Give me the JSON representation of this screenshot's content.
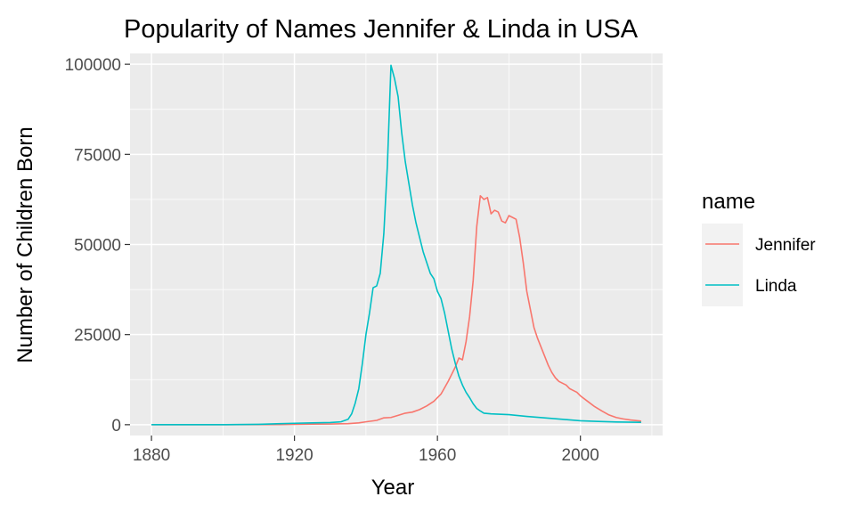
{
  "chart_data": {
    "type": "line",
    "title": "Popularity of Names Jennifer & Linda in USA",
    "xlabel": "Year",
    "ylabel": "Number of Children Born",
    "xlim": [
      1874,
      2023
    ],
    "ylim": [
      -3000,
      103000
    ],
    "x_ticks": [
      1880,
      1920,
      1960,
      2000
    ],
    "y_ticks": [
      0,
      25000,
      50000,
      75000,
      100000
    ],
    "x_tick_labels": [
      "1880",
      "1920",
      "1960",
      "2000"
    ],
    "y_tick_labels": [
      "0",
      "25000",
      "50000",
      "75000",
      "100000"
    ],
    "grid": true,
    "panel_background": "#ebebeb",
    "grid_color": "#ffffff",
    "legend": {
      "title": "name",
      "position": "right",
      "background": "#f2f2f2"
    },
    "series": [
      {
        "name": "Jennifer",
        "color": "#f8766d",
        "points": [
          [
            1880,
            0
          ],
          [
            1900,
            0
          ],
          [
            1916,
            50
          ],
          [
            1920,
            100
          ],
          [
            1925,
            150
          ],
          [
            1930,
            200
          ],
          [
            1935,
            300
          ],
          [
            1938,
            500
          ],
          [
            1940,
            800
          ],
          [
            1943,
            1200
          ],
          [
            1945,
            1900
          ],
          [
            1947,
            2000
          ],
          [
            1949,
            2600
          ],
          [
            1951,
            3200
          ],
          [
            1953,
            3500
          ],
          [
            1955,
            4200
          ],
          [
            1957,
            5200
          ],
          [
            1959,
            6500
          ],
          [
            1961,
            8500
          ],
          [
            1963,
            12000
          ],
          [
            1964,
            14000
          ],
          [
            1965,
            16000
          ],
          [
            1966,
            18500
          ],
          [
            1967,
            18000
          ],
          [
            1968,
            23000
          ],
          [
            1969,
            30000
          ],
          [
            1970,
            40000
          ],
          [
            1971,
            55000
          ],
          [
            1972,
            63500
          ],
          [
            1973,
            62500
          ],
          [
            1974,
            63000
          ],
          [
            1975,
            58500
          ],
          [
            1976,
            59500
          ],
          [
            1977,
            59000
          ],
          [
            1978,
            56500
          ],
          [
            1979,
            56000
          ],
          [
            1980,
            58000
          ],
          [
            1981,
            57500
          ],
          [
            1982,
            57000
          ],
          [
            1983,
            52000
          ],
          [
            1984,
            45000
          ],
          [
            1985,
            37000
          ],
          [
            1986,
            32000
          ],
          [
            1987,
            27000
          ],
          [
            1988,
            24000
          ],
          [
            1989,
            21500
          ],
          [
            1990,
            19000
          ],
          [
            1991,
            16500
          ],
          [
            1992,
            14500
          ],
          [
            1993,
            13000
          ],
          [
            1994,
            12000
          ],
          [
            1995,
            11500
          ],
          [
            1996,
            11000
          ],
          [
            1997,
            10000
          ],
          [
            1998,
            9500
          ],
          [
            1999,
            9000
          ],
          [
            2000,
            8000
          ],
          [
            2002,
            6500
          ],
          [
            2004,
            5000
          ],
          [
            2006,
            3800
          ],
          [
            2008,
            2700
          ],
          [
            2010,
            2000
          ],
          [
            2012,
            1600
          ],
          [
            2014,
            1300
          ],
          [
            2017,
            1000
          ]
        ]
      },
      {
        "name": "Linda",
        "color": "#00bfc4",
        "points": [
          [
            1880,
            0
          ],
          [
            1900,
            0
          ],
          [
            1910,
            100
          ],
          [
            1915,
            250
          ],
          [
            1920,
            400
          ],
          [
            1925,
            500
          ],
          [
            1930,
            600
          ],
          [
            1933,
            800
          ],
          [
            1935,
            1500
          ],
          [
            1936,
            3000
          ],
          [
            1937,
            6000
          ],
          [
            1938,
            10000
          ],
          [
            1939,
            17000
          ],
          [
            1940,
            25000
          ],
          [
            1941,
            31000
          ],
          [
            1942,
            38000
          ],
          [
            1943,
            38500
          ],
          [
            1944,
            42000
          ],
          [
            1945,
            53000
          ],
          [
            1946,
            72000
          ],
          [
            1947,
            99700
          ],
          [
            1948,
            96000
          ],
          [
            1949,
            91000
          ],
          [
            1950,
            81000
          ],
          [
            1951,
            73000
          ],
          [
            1952,
            67000
          ],
          [
            1953,
            61000
          ],
          [
            1954,
            56000
          ],
          [
            1955,
            52000
          ],
          [
            1956,
            48000
          ],
          [
            1957,
            45000
          ],
          [
            1958,
            42000
          ],
          [
            1959,
            40500
          ],
          [
            1960,
            37000
          ],
          [
            1961,
            35000
          ],
          [
            1962,
            31000
          ],
          [
            1963,
            26000
          ],
          [
            1964,
            21000
          ],
          [
            1965,
            17000
          ],
          [
            1966,
            13500
          ],
          [
            1967,
            11000
          ],
          [
            1968,
            9000
          ],
          [
            1969,
            7500
          ],
          [
            1970,
            5800
          ],
          [
            1971,
            4500
          ],
          [
            1972,
            3800
          ],
          [
            1973,
            3200
          ],
          [
            1975,
            3000
          ],
          [
            1980,
            2800
          ],
          [
            1985,
            2300
          ],
          [
            1990,
            1900
          ],
          [
            1995,
            1500
          ],
          [
            2000,
            1100
          ],
          [
            2005,
            900
          ],
          [
            2010,
            750
          ],
          [
            2017,
            650
          ]
        ]
      }
    ]
  }
}
